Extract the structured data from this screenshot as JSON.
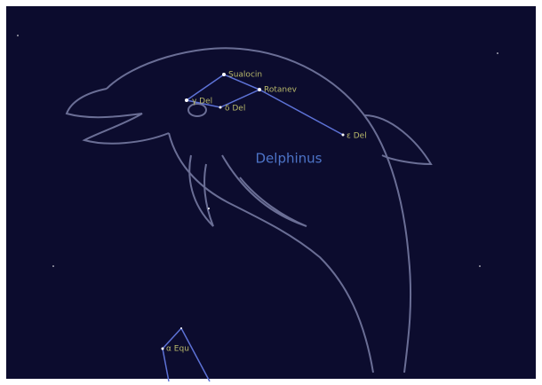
{
  "constellation": {
    "name": "Delphinus"
  },
  "stars": [
    {
      "label": "Sualocin"
    },
    {
      "label": "Rotanev"
    },
    {
      "label": "γ Del"
    },
    {
      "label": "δ Del"
    },
    {
      "label": "ε Del"
    },
    {
      "label": "α Equ"
    }
  ]
}
